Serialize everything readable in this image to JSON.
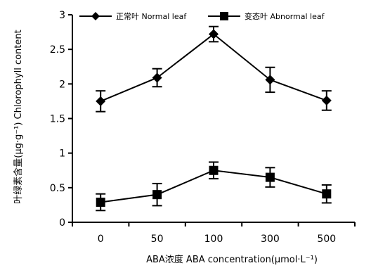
{
  "chart_data": {
    "type": "line",
    "title": "",
    "xlabel": "ABA浓度 ABA concentration(μmol·L⁻¹)",
    "ylabel": "叶绿素含量(μg·g⁻¹) Chlorophyll content",
    "categories": [
      "0",
      "50",
      "100",
      "300",
      "500"
    ],
    "ylim": [
      0,
      3
    ],
    "yticks": [
      0,
      0.5,
      1,
      1.5,
      2,
      2.5,
      3
    ],
    "ytick_labels": [
      "0",
      "0.5",
      "1",
      "1.5",
      "2",
      "2.5",
      "3"
    ],
    "grid": false,
    "legend_position": "top",
    "series": [
      {
        "name": "正常叶 Normal leaf",
        "marker": "diamond",
        "values": [
          1.75,
          2.09,
          2.72,
          2.06,
          1.76
        ],
        "errors": [
          0.15,
          0.13,
          0.11,
          0.18,
          0.14
        ]
      },
      {
        "name": "变态叶 Abnormal leaf",
        "marker": "square",
        "values": [
          0.29,
          0.4,
          0.75,
          0.65,
          0.41
        ],
        "errors": [
          0.12,
          0.16,
          0.12,
          0.14,
          0.13
        ]
      }
    ]
  }
}
